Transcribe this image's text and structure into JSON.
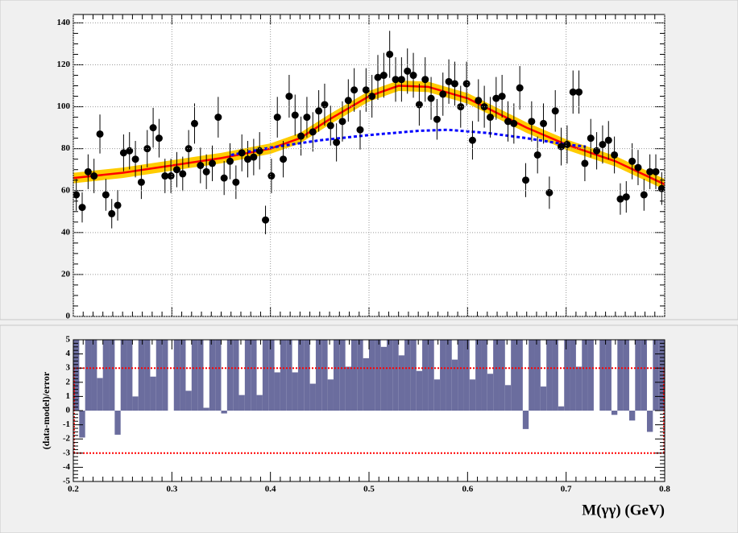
{
  "chart_data": [
    {
      "type": "scatter",
      "x": [
        0.203,
        0.209,
        0.215,
        0.221,
        0.227,
        0.233,
        0.239,
        0.245,
        0.251,
        0.257,
        0.263,
        0.269,
        0.275,
        0.281,
        0.287,
        0.293,
        0.299,
        0.305,
        0.311,
        0.317,
        0.323,
        0.329,
        0.335,
        0.341,
        0.347,
        0.353,
        0.359,
        0.365,
        0.371,
        0.377,
        0.383,
        0.389,
        0.395,
        0.401,
        0.407,
        0.413,
        0.419,
        0.425,
        0.431,
        0.437,
        0.443,
        0.449,
        0.455,
        0.461,
        0.467,
        0.473,
        0.479,
        0.485,
        0.491,
        0.497,
        0.503,
        0.509,
        0.515,
        0.521,
        0.527,
        0.533,
        0.539,
        0.545,
        0.551,
        0.557,
        0.563,
        0.569,
        0.575,
        0.581,
        0.587,
        0.593,
        0.599,
        0.605,
        0.611,
        0.617,
        0.623,
        0.629,
        0.635,
        0.641,
        0.647,
        0.653,
        0.659,
        0.665,
        0.671,
        0.677,
        0.683,
        0.689,
        0.695,
        0.701,
        0.707,
        0.713,
        0.719,
        0.725,
        0.731,
        0.737,
        0.743,
        0.749,
        0.755,
        0.761,
        0.767,
        0.773,
        0.779,
        0.785,
        0.791,
        0.797
      ],
      "values": [
        58,
        52,
        69,
        67,
        87,
        58,
        49,
        53,
        78,
        79,
        75,
        64,
        80,
        90,
        85,
        67,
        67,
        70,
        68,
        80,
        92,
        72,
        69,
        73,
        95,
        66,
        74,
        64,
        78,
        75,
        76,
        79,
        46,
        67,
        95,
        75,
        105,
        96,
        86,
        95,
        88,
        98,
        101,
        91,
        83,
        93,
        103,
        108,
        89,
        108,
        105,
        114,
        115,
        125,
        113,
        113,
        117,
        115,
        101,
        113,
        104,
        94,
        106,
        112,
        111,
        100,
        111,
        84,
        103,
        100,
        95,
        104,
        105,
        93,
        92,
        109,
        65,
        93,
        77,
        92,
        59,
        98,
        81,
        82,
        107,
        107,
        73,
        85,
        79,
        82,
        84,
        77,
        56,
        57,
        74,
        71,
        58,
        69,
        69,
        61
      ],
      "errors": [
        7.6,
        7.2,
        8.3,
        8.2,
        9.3,
        7.6,
        7,
        7.3,
        8.8,
        8.9,
        8.7,
        8,
        8.9,
        9.5,
        9.2,
        8.2,
        8.2,
        8.4,
        8.2,
        8.9,
        9.6,
        8.5,
        8.3,
        8.5,
        9.7,
        8.1,
        8.6,
        8,
        8.8,
        8.7,
        8.7,
        8.9,
        6.8,
        8.2,
        9.7,
        8.7,
        10.2,
        9.8,
        9.3,
        9.7,
        9.4,
        9.9,
        10,
        9.5,
        9.1,
        9.6,
        10.1,
        10.4,
        9.4,
        10.4,
        10.2,
        10.7,
        10.7,
        11.2,
        10.6,
        10.6,
        10.8,
        10.7,
        10,
        10.6,
        10.2,
        9.7,
        10.3,
        10.6,
        10.5,
        10,
        10.5,
        9.2,
        10.1,
        10,
        9.7,
        10.2,
        10.2,
        9.6,
        9.6,
        10.4,
        8.1,
        9.6,
        8.8,
        9.6,
        7.7,
        9.9,
        9,
        9.1,
        10.3,
        10.3,
        8.5,
        9.2,
        8.9,
        9.1,
        9.2,
        8.8,
        7.5,
        7.5,
        8.6,
        8.4,
        7.6,
        8.3,
        8.3,
        7.8
      ],
      "color": "#000000",
      "series": [
        {
          "x": [
            0.2,
            0.25,
            0.3,
            0.35,
            0.4,
            0.43,
            0.46,
            0.5,
            0.53,
            0.56,
            0.6,
            0.63,
            0.66,
            0.7,
            0.75,
            0.8
          ],
          "values": [
            66,
            68.5,
            72,
            75.5,
            80,
            85,
            94,
            105,
            110,
            109.5,
            104,
            97,
            90,
            82,
            74,
            63
          ],
          "color": "#ff0000",
          "band": 2.5,
          "band_color": "#ffcc00"
        },
        {
          "x": [
            0.36,
            0.4,
            0.45,
            0.5,
            0.55,
            0.58,
            0.62,
            0.66,
            0.7,
            0.72
          ],
          "values": [
            77,
            80.5,
            84,
            86.5,
            88.5,
            89,
            87.5,
            85,
            82,
            81
          ],
          "color": "#0000ff",
          "dashed": true
        }
      ],
      "xlim": [
        0.2,
        0.8
      ],
      "xticks": [
        0.2,
        0.3,
        0.4,
        0.5,
        0.6,
        0.7,
        0.8
      ],
      "ylim": [
        0,
        144
      ],
      "yticks": [
        0,
        20,
        40,
        60,
        80,
        100,
        120,
        140
      ],
      "grid": true
    },
    {
      "type": "bar",
      "values": [
        5,
        -1.9,
        5,
        5,
        2.3,
        5,
        5,
        -1.7,
        5,
        5,
        1.0,
        5,
        5,
        2.4,
        5,
        5,
        0,
        5,
        5,
        1.4,
        5,
        5,
        0.2,
        5,
        5,
        -0.2,
        5,
        5,
        1.1,
        5,
        5,
        1.1,
        5,
        5,
        2.7,
        5,
        5,
        2.7,
        5,
        5,
        1.9,
        5,
        5,
        2.2,
        5,
        5,
        3.1,
        5,
        5,
        3.7,
        5,
        5,
        4.5,
        5,
        5,
        3.9,
        5,
        5,
        2.8,
        5,
        5,
        2.2,
        5,
        5,
        3.6,
        5,
        5,
        2.2,
        5,
        5,
        2.6,
        5,
        5,
        1.8,
        5,
        5,
        -1.3,
        5,
        5,
        1.7,
        5,
        5,
        0.3,
        5,
        5,
        3.1,
        5,
        5,
        0,
        5,
        5,
        -0.3,
        5,
        5,
        -0.7,
        5,
        5,
        -1.5,
        5,
        5
      ],
      "color": "#6b6d9e",
      "reference_lines": [
        -3,
        3
      ],
      "reference_color": "#ff0000",
      "xlabel": "M(γγ) (GeV)",
      "ylabel": "(data-model)/error",
      "xlim": [
        0.2,
        0.8
      ],
      "xticks": [
        0.2,
        0.3,
        0.4,
        0.5,
        0.6,
        0.7,
        0.8
      ],
      "ylim": [
        -5,
        5
      ],
      "yticks": [
        -5,
        -4,
        -3,
        -2,
        -1,
        0,
        1,
        2,
        3,
        4,
        5
      ]
    }
  ]
}
